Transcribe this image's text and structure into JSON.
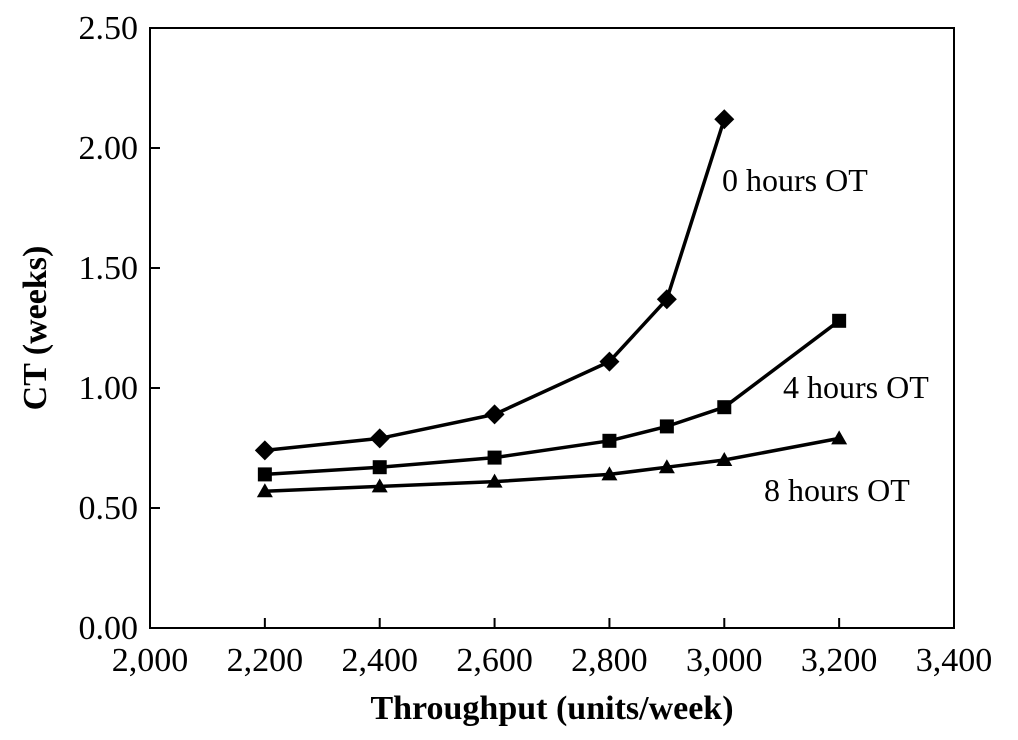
{
  "chart_data": {
    "type": "line",
    "title": "",
    "xlabel": "Throughput (units/week)",
    "ylabel": "CT (weeks)",
    "xlim": [
      2000,
      3400
    ],
    "ylim": [
      0,
      2.5
    ],
    "x_ticks": [
      "2,000",
      "2,200",
      "2,400",
      "2,600",
      "2,800",
      "3,000",
      "3,200",
      "3,400"
    ],
    "y_ticks": [
      "0.00",
      "0.50",
      "1.00",
      "1.50",
      "2.00",
      "2.50"
    ],
    "grid": false,
    "legend": "none",
    "series": [
      {
        "name": "0 hours OT",
        "marker": "diamond",
        "color": "#000000",
        "x": [
          2200,
          2400,
          2600,
          2800,
          2900,
          3000
        ],
        "y": [
          0.74,
          0.79,
          0.89,
          1.11,
          1.37,
          2.12
        ]
      },
      {
        "name": "4 hours OT",
        "marker": "square",
        "color": "#000000",
        "x": [
          2200,
          2400,
          2600,
          2800,
          2900,
          3000,
          3200
        ],
        "y": [
          0.64,
          0.67,
          0.71,
          0.78,
          0.84,
          0.92,
          1.28
        ]
      },
      {
        "name": "8 hours OT",
        "marker": "triangle",
        "color": "#000000",
        "x": [
          2200,
          2400,
          2600,
          2800,
          2900,
          3000,
          3200
        ],
        "y": [
          0.57,
          0.59,
          0.61,
          0.64,
          0.67,
          0.7,
          0.79
        ]
      }
    ]
  }
}
